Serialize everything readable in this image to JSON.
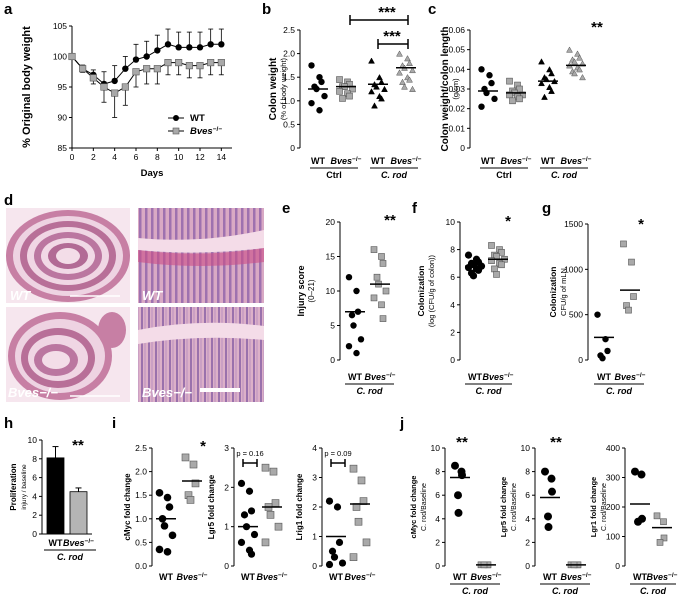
{
  "chart_data": [
    {
      "panel": "a",
      "type": "line",
      "xlabel": "Days",
      "ylabel": "% Original body weight",
      "xlim": [
        0,
        15
      ],
      "ylim": [
        85,
        105
      ],
      "xticks": [
        "0",
        "2",
        "4",
        "6",
        "8",
        "10",
        "12",
        "14"
      ],
      "yticks": [
        "85",
        "90",
        "95",
        "100",
        "105"
      ],
      "x": [
        0,
        1,
        2,
        3,
        4,
        5,
        6,
        7,
        8,
        9,
        10,
        11,
        12,
        13,
        14
      ],
      "series": [
        {
          "name": "WT",
          "marker": "circle",
          "values": [
            100,
            98,
            97,
            95.5,
            96,
            98,
            99.5,
            100,
            101,
            102,
            101.5,
            101.5,
            101.5,
            102,
            102
          ],
          "err": [
            0,
            0.6,
            0.8,
            2,
            2.5,
            2,
            2.5,
            2.5,
            2.5,
            2.5,
            2.5,
            2.5,
            2.5,
            2.5,
            2.5
          ]
        },
        {
          "name": "Bves−/−",
          "marker": "square",
          "values": [
            100,
            98,
            96.5,
            95,
            94,
            95,
            97.5,
            98,
            98,
            99,
            99,
            98.5,
            98.5,
            99,
            99
          ],
          "err": [
            0,
            0.6,
            1,
            2.5,
            4,
            3,
            2.5,
            2.5,
            2.5,
            2,
            2,
            2,
            2,
            2,
            2
          ]
        }
      ]
    },
    {
      "panel": "b",
      "type": "scatter",
      "ylabel": "Colon weight",
      "ylabel2": "(% of body weight)",
      "ylim": [
        0,
        2.5
      ],
      "yticks": [
        "0",
        "0.5",
        "1.0",
        "1.5",
        "2.0",
        "2.5"
      ],
      "groups": [
        "WT",
        "Bves−/−",
        "WT",
        "Bves−/−"
      ],
      "conditions": [
        "Ctrl",
        "C. rod"
      ],
      "significance": [
        "***",
        "***"
      ],
      "means": [
        1.25,
        1.3,
        1.35,
        1.7
      ],
      "points": [
        [
          1.75,
          1.5,
          1.4,
          1.3,
          1.25,
          1.1,
          0.95,
          0.8
        ],
        [
          1.45,
          1.4,
          1.35,
          1.3,
          1.3,
          1.25,
          1.2,
          1.15,
          1.1,
          1.05
        ],
        [
          1.85,
          1.5,
          1.4,
          1.35,
          1.3,
          1.25,
          1.2,
          1.1,
          1.05,
          0.9
        ],
        [
          2.0,
          1.9,
          1.8,
          1.75,
          1.7,
          1.65,
          1.6,
          1.5,
          1.45,
          1.4,
          1.3,
          1.25
        ]
      ]
    },
    {
      "panel": "c",
      "type": "scatter",
      "ylabel": "Colon weight/colon length",
      "ylabel2": "(g/cm)",
      "ylim": [
        0,
        0.06
      ],
      "yticks": [
        "0",
        "0.01",
        "0.02",
        "0.03",
        "0.04",
        "0.05",
        "0.06"
      ],
      "groups": [
        "WT",
        "Bves−/−",
        "WT",
        "Bves−/−"
      ],
      "conditions": [
        "Ctrl",
        "C. rod"
      ],
      "significance": [
        "**"
      ],
      "means": [
        0.029,
        0.028,
        0.034,
        0.042
      ],
      "points": [
        [
          0.04,
          0.037,
          0.033,
          0.03,
          0.028,
          0.025,
          0.021
        ],
        [
          0.034,
          0.032,
          0.03,
          0.029,
          0.028,
          0.027,
          0.027,
          0.026,
          0.025,
          0.024
        ],
        [
          0.044,
          0.04,
          0.038,
          0.036,
          0.035,
          0.034,
          0.033,
          0.031,
          0.029,
          0.026
        ],
        [
          0.05,
          0.048,
          0.046,
          0.045,
          0.044,
          0.043,
          0.042,
          0.041,
          0.04,
          0.039,
          0.038,
          0.036
        ]
      ]
    },
    {
      "panel": "e",
      "type": "scatter",
      "ylabel": "Injury score",
      "ylabel2": "(0–21)",
      "ylim": [
        0,
        20
      ],
      "yticks": [
        "0",
        "5",
        "10",
        "15",
        "20"
      ],
      "groups": [
        "WT",
        "Bves−/−"
      ],
      "condition": "C. rod",
      "significance": [
        "**"
      ],
      "means": [
        7,
        11
      ],
      "points": [
        [
          12,
          10,
          7,
          6.5,
          5,
          3,
          2,
          1
        ],
        [
          16,
          15,
          14,
          12,
          11,
          10,
          9,
          8,
          6
        ]
      ]
    },
    {
      "panel": "f",
      "type": "scatter",
      "ylabel": "Colonization",
      "ylabel2": "(log (CFU/g of colon))",
      "ylim": [
        0,
        10
      ],
      "yticks": [
        "0",
        "2",
        "4",
        "6",
        "8",
        "10"
      ],
      "groups": [
        "WT",
        "Bves−/−"
      ],
      "condition": "C. rod",
      "significance": [
        "*"
      ],
      "means": [
        6.8,
        7.3
      ],
      "points": [
        [
          7.6,
          7.3,
          7.1,
          7.0,
          6.9,
          6.8,
          6.7,
          6.6,
          6.5,
          6.3,
          6.1
        ],
        [
          8.3,
          8.0,
          7.8,
          7.6,
          7.5,
          7.3,
          7.2,
          7.0,
          6.9,
          6.6,
          6.2
        ]
      ]
    },
    {
      "panel": "g",
      "type": "scatter",
      "ylabel": "Colonization",
      "ylabel2": "CFU/g of mLN",
      "ylim": [
        0,
        1500
      ],
      "yticks": [
        "0",
        "500",
        "1000",
        "1500"
      ],
      "groups": [
        "WT",
        "Bves−/−"
      ],
      "condition": "C. rod",
      "significance": [
        "*"
      ],
      "means": [
        250,
        770
      ],
      "points": [
        [
          500,
          230,
          100,
          50,
          20
        ],
        [
          1280,
          1080,
          700,
          600,
          550
        ]
      ]
    },
    {
      "panel": "h",
      "type": "bar",
      "ylabel": "Proliferation",
      "ylabel2": "injury / baseline",
      "ylim": [
        0,
        10
      ],
      "yticks": [
        "0",
        "2",
        "4",
        "6",
        "8",
        "10"
      ],
      "categories": [
        "WT",
        "Bves−/−"
      ],
      "condition": "C. rod",
      "significance": [
        "**"
      ],
      "values": [
        8.1,
        4.5
      ],
      "err": [
        1.2,
        0.4
      ],
      "colors": [
        "#000000",
        "#b5b5b5"
      ]
    },
    {
      "panel": "i1",
      "type": "scatter",
      "ylabel": "cMyc fold change",
      "ylim": [
        0,
        2.5
      ],
      "yticks": [
        "0.0",
        "0.5",
        "1.0",
        "1.5",
        "2.0",
        "2.5"
      ],
      "groups": [
        "WT",
        "Bves−/−"
      ],
      "significance": [
        "*"
      ],
      "means": [
        1.0,
        1.8
      ],
      "points": [
        [
          1.55,
          1.45,
          1.25,
          1.0,
          0.85,
          0.65,
          0.35,
          0.3
        ],
        [
          2.3,
          2.15,
          1.75,
          1.5,
          1.4
        ]
      ]
    },
    {
      "panel": "i2",
      "type": "scatter",
      "ylabel": "Lgr5 fold change",
      "ylim": [
        0,
        3
      ],
      "yticks": [
        "0",
        "1",
        "2",
        "3"
      ],
      "groups": [
        "WT",
        "Bves−/−"
      ],
      "pvalue": "p = 0.16",
      "means": [
        1.0,
        1.5
      ],
      "points": [
        [
          2.1,
          1.9,
          1.4,
          1.3,
          1.0,
          0.8,
          0.6,
          0.4,
          0.3
        ],
        [
          2.5,
          2.4,
          1.6,
          1.5,
          1.3,
          1.0,
          0.6
        ]
      ]
    },
    {
      "panel": "i3",
      "type": "scatter",
      "ylabel": "Lrig1 fold change",
      "ylim": [
        0,
        4
      ],
      "yticks": [
        "0",
        "1",
        "2",
        "3",
        "4"
      ],
      "groups": [
        "WT",
        "Bves−/−"
      ],
      "pvalue": "p = 0.09",
      "means": [
        1.0,
        2.1
      ],
      "points": [
        [
          2.2,
          2.0,
          0.8,
          0.5,
          0.3,
          0.1,
          0.05
        ],
        [
          3.3,
          2.9,
          2.2,
          2.0,
          1.5,
          0.8,
          0.3
        ]
      ]
    },
    {
      "panel": "j1",
      "type": "scatter",
      "ylabel": "cMyc fold change",
      "ylabel2": "C. rod/Baseline",
      "ylim": [
        0,
        10
      ],
      "yticks": [
        "0",
        "2",
        "4",
        "6",
        "8",
        "10"
      ],
      "groups": [
        "WT",
        "Bves−/−"
      ],
      "condition": "C. rod",
      "significance": [
        "**"
      ],
      "means": [
        7.5,
        0.1
      ],
      "points": [
        [
          8.5,
          8.0,
          7.7,
          6.0,
          4.5
        ],
        [
          0.1,
          0.1,
          0.1,
          0.1
        ]
      ]
    },
    {
      "panel": "j2",
      "type": "scatter",
      "ylabel": "Lgr5 fold change",
      "ylabel2": "C. rod/Baseline",
      "ylim": [
        0,
        10
      ],
      "yticks": [
        "0",
        "2",
        "4",
        "6",
        "8",
        "10"
      ],
      "groups": [
        "WT",
        "Bves−/−"
      ],
      "condition": "C. rod",
      "significance": [
        "**"
      ],
      "means": [
        5.8,
        0.1
      ],
      "points": [
        [
          8.0,
          7.4,
          6.3,
          4.2,
          3.3
        ],
        [
          0.1,
          0.1,
          0.1,
          0.1
        ]
      ]
    },
    {
      "panel": "j3",
      "type": "scatter",
      "ylabel": "Lgr1 fold change",
      "ylabel2": "C. rod/Baseline",
      "ylim": [
        0,
        400
      ],
      "yticks": [
        "0",
        "100",
        "200",
        "300",
        "400"
      ],
      "groups": [
        "WT",
        "Bves−/−"
      ],
      "condition": "C. rod",
      "means": [
        210,
        130
      ],
      "points": [
        [
          320,
          310,
          160,
          150
        ],
        [
          170,
          150,
          95,
          80
        ]
      ]
    }
  ],
  "panel_d": {
    "label": "d",
    "images": [
      {
        "label": "WT",
        "view": "swiss roll"
      },
      {
        "label": "WT",
        "view": "zoom"
      },
      {
        "label": "Bves−/−",
        "view": "swiss roll"
      },
      {
        "label": "Bves−/−",
        "view": "zoom"
      }
    ]
  },
  "colors": {
    "wt": "#000000",
    "ko_fill": "#a9a9a9",
    "ko_stroke": "#555555",
    "he_pink": "#e8b8c8",
    "he_purple": "#7b5fa8"
  }
}
